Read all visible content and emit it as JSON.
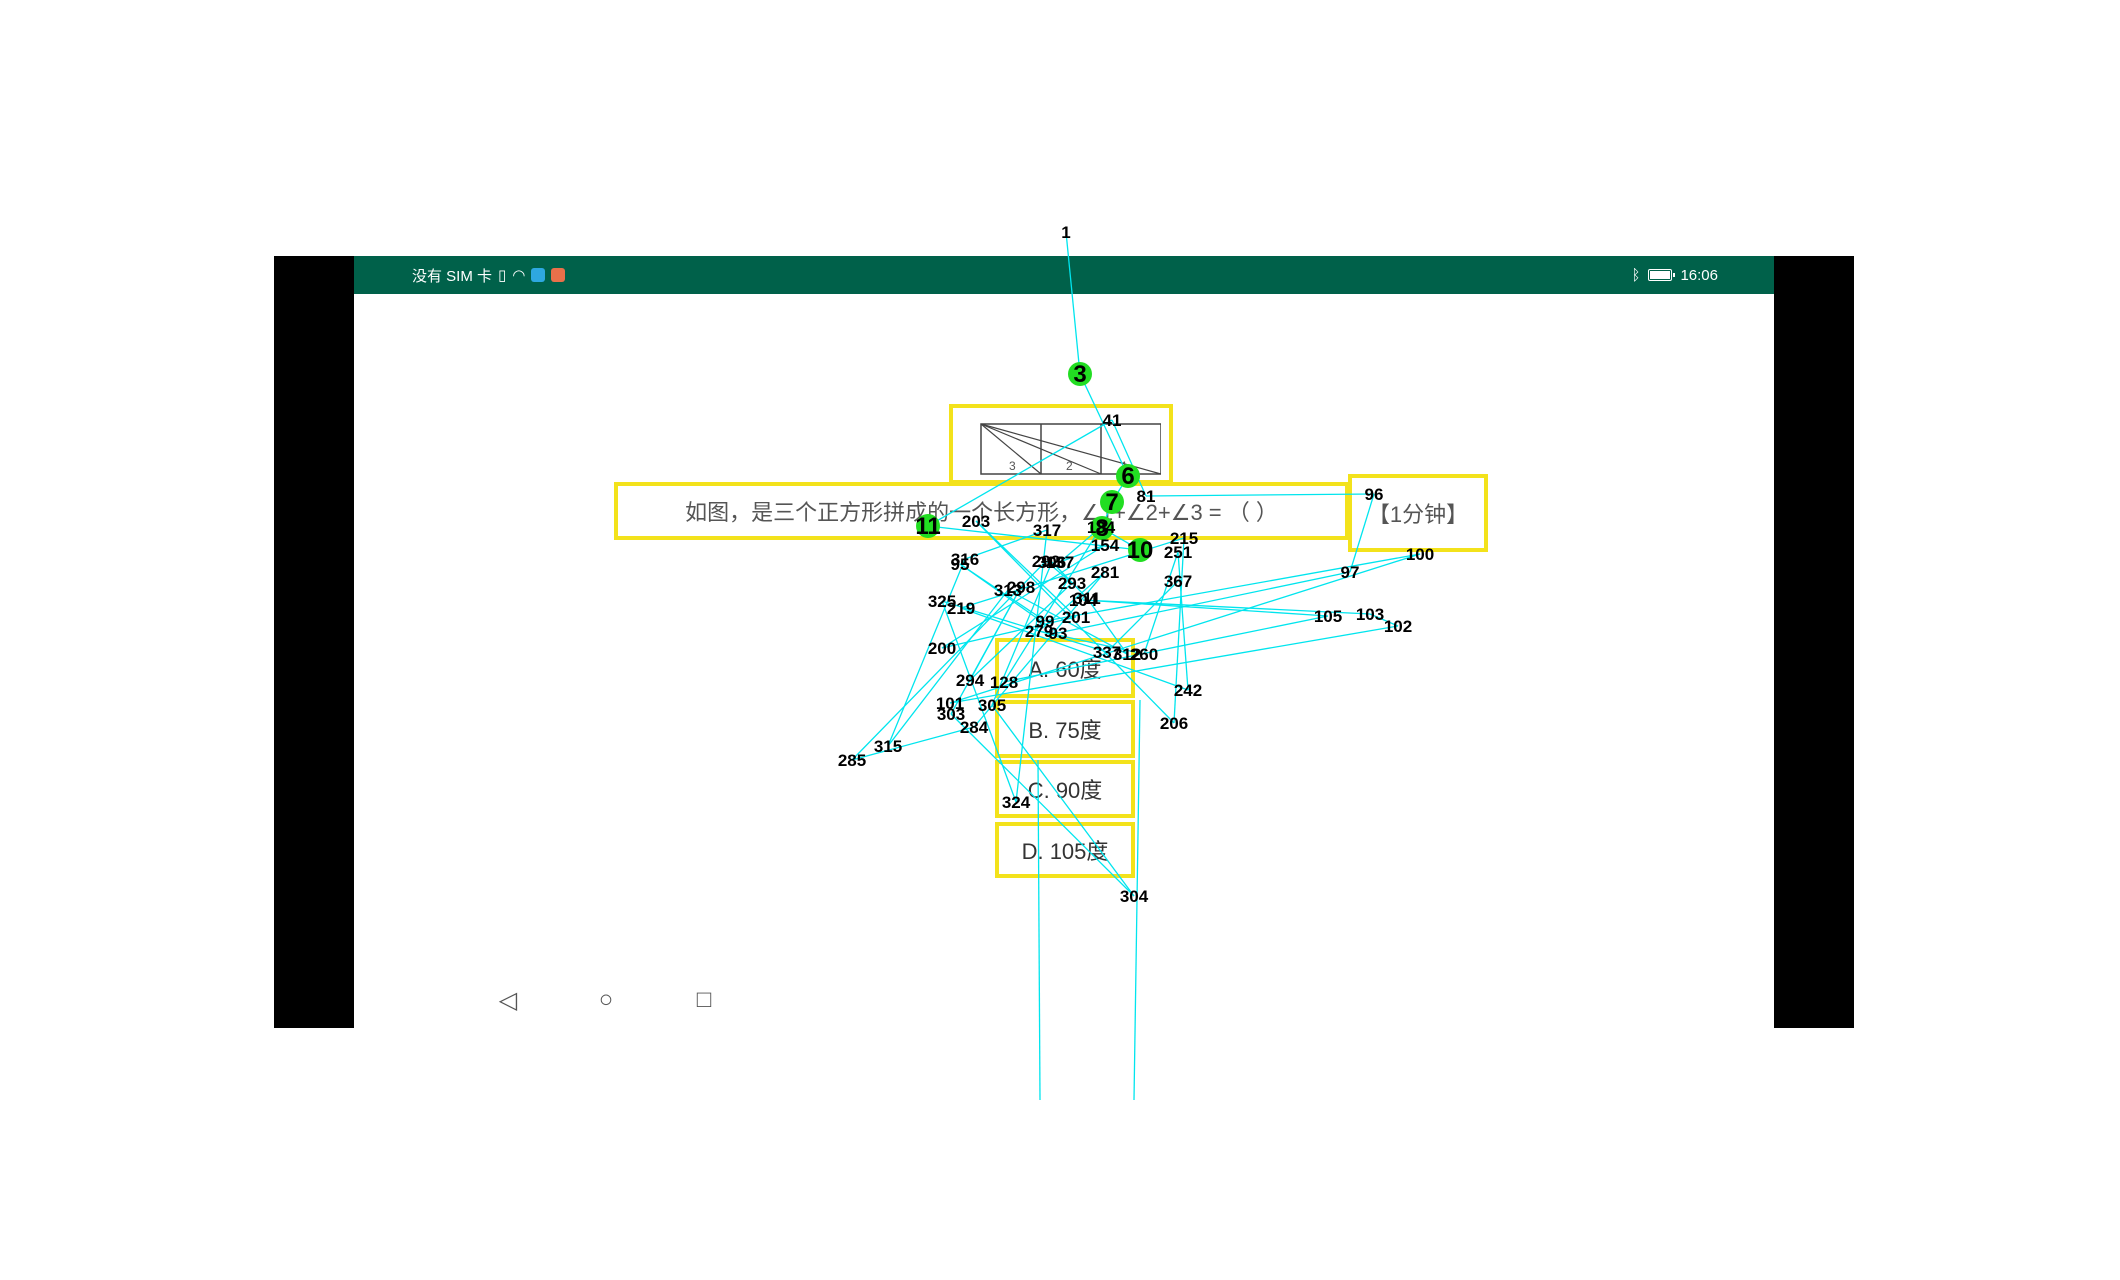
{
  "statusbar": {
    "carrier": "没有 SIM 卡",
    "time": "16:06",
    "battery_level": 0.9
  },
  "question": {
    "text": "如图，是三个正方形拼成的一个长方形，∠1+∠2+∠3 = （ ）",
    "time_hint": "【1分钟】",
    "figure_labels": [
      "3",
      "2",
      "1"
    ]
  },
  "options": [
    {
      "key": "A",
      "label": "A. 60度"
    },
    {
      "key": "B",
      "label": "B. 75度"
    },
    {
      "key": "C",
      "label": "C. 90度"
    },
    {
      "key": "D",
      "label": "D. 105度"
    }
  ],
  "navbar": {
    "back_icon": "◁",
    "home_icon": "○",
    "recents_icon": "□"
  },
  "trace_overlay": {
    "line_color": "#00e5ee",
    "marker_color": "#22dd22",
    "label_color": "#000000",
    "labels": [
      "1",
      "3",
      "6",
      "7",
      "8",
      "10",
      "11",
      "41",
      "81",
      "96",
      "97",
      "93",
      "95",
      "99",
      "100",
      "101",
      "102",
      "103",
      "104",
      "105",
      "128",
      "134",
      "137",
      "154",
      "200",
      "201",
      "203",
      "206",
      "215",
      "219",
      "242",
      "251",
      "260",
      "279",
      "281",
      "284",
      "285",
      "292",
      "293",
      "294",
      "298",
      "303",
      "304",
      "305",
      "306",
      "311",
      "312",
      "313",
      "315",
      "316",
      "317",
      "324",
      "325",
      "337",
      "367"
    ],
    "big_labels": [
      "3",
      "6",
      "7",
      "8",
      "10",
      "11"
    ]
  }
}
